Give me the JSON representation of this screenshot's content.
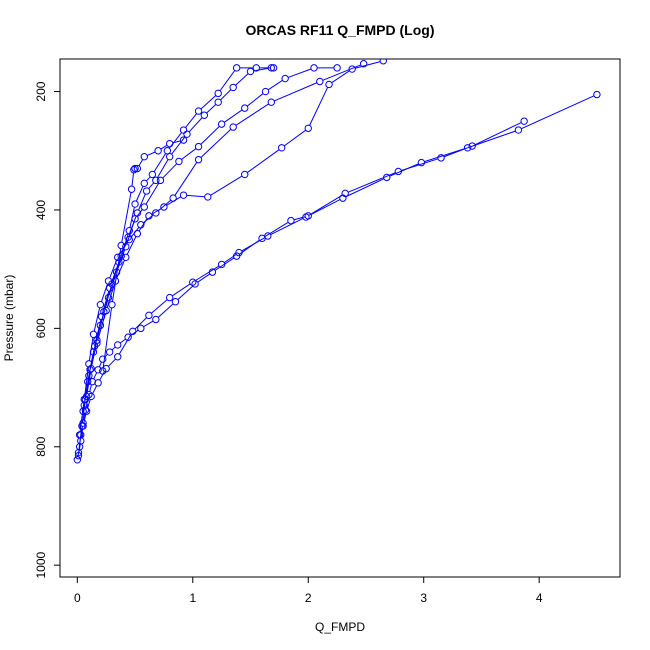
{
  "chart_data": {
    "type": "line",
    "title": "ORCAS RF11 Q_FMPD (Log)",
    "xlabel": "Q_FMPD",
    "ylabel": "Pressure (mbar)",
    "xlim": [
      -0.15,
      4.7
    ],
    "ylim": [
      1020,
      145
    ],
    "y_reversed": true,
    "x_ticks": [
      0,
      1,
      2,
      3,
      4
    ],
    "y_ticks": [
      200,
      400,
      600,
      800,
      1000
    ],
    "grid": false,
    "marker": "open-circle",
    "color": "#0000ff",
    "series": [
      {
        "x": [
          0.0,
          0.02,
          0.03,
          0.05,
          0.07,
          0.1,
          0.13,
          0.18,
          0.22,
          0.28,
          0.35,
          0.44,
          0.55,
          0.68,
          0.85,
          1.02,
          1.17,
          1.38,
          1.6,
          1.85,
          2.0,
          2.3,
          2.68,
          2.98,
          3.38,
          3.82,
          4.5
        ],
        "y": [
          822,
          800,
          780,
          760,
          738,
          712,
          690,
          670,
          652,
          640,
          628,
          615,
          600,
          585,
          555,
          525,
          505,
          478,
          448,
          418,
          410,
          380,
          345,
          320,
          295,
          265,
          205
        ]
      },
      {
        "x": [
          0.01,
          0.03,
          0.05,
          0.08,
          0.12,
          0.18,
          0.25,
          0.35,
          0.48,
          0.62,
          0.8,
          1.0,
          1.25,
          1.4,
          1.65,
          1.98,
          2.32,
          2.78,
          3.15,
          3.42,
          3.87
        ],
        "y": [
          815,
          790,
          765,
          740,
          715,
          692,
          668,
          648,
          605,
          578,
          548,
          522,
          492,
          472,
          444,
          412,
          372,
          335,
          312,
          292,
          250
        ]
      },
      {
        "x": [
          0.01,
          0.04,
          0.07,
          0.11,
          0.17,
          0.25,
          0.33,
          0.42,
          0.52,
          0.62,
          0.75,
          0.92,
          1.13,
          1.45,
          1.77,
          2.0,
          2.18,
          2.38,
          2.65
        ],
        "y": [
          810,
          765,
          720,
          670,
          625,
          570,
          520,
          480,
          440,
          410,
          395,
          375,
          378,
          340,
          295,
          262,
          188,
          162,
          148
        ]
      },
      {
        "x": [
          0.02,
          0.06,
          0.1,
          0.14,
          0.2,
          0.27,
          0.35,
          0.45,
          0.55,
          0.68,
          0.83,
          1.05,
          1.35,
          1.68,
          2.1,
          2.48
        ],
        "y": [
          780,
          720,
          660,
          610,
          560,
          520,
          480,
          450,
          425,
          405,
          380,
          315,
          260,
          218,
          183,
          153
        ]
      },
      {
        "x": [
          0.05,
          0.09,
          0.14,
          0.2,
          0.27,
          0.34,
          0.42,
          0.5,
          0.58,
          0.72,
          0.88,
          1.05,
          1.25,
          1.45,
          1.63,
          1.8,
          2.05,
          2.25
        ],
        "y": [
          740,
          690,
          640,
          595,
          548,
          505,
          462,
          415,
          395,
          350,
          318,
          293,
          255,
          228,
          200,
          178,
          160,
          160
        ]
      },
      {
        "x": [
          0.06,
          0.1,
          0.15,
          0.21,
          0.28,
          0.36,
          0.44,
          0.52,
          0.6,
          0.68,
          0.8,
          0.95,
          1.1,
          1.22,
          1.35,
          1.5,
          1.68
        ],
        "y": [
          730,
          680,
          630,
          580,
          532,
          488,
          446,
          405,
          368,
          350,
          310,
          272,
          240,
          218,
          193,
          166,
          160
        ]
      },
      {
        "x": [
          0.08,
          0.12,
          0.17,
          0.23,
          0.3,
          0.38,
          0.45,
          0.5,
          0.58,
          0.65,
          0.78,
          0.92,
          1.05,
          1.22,
          1.38,
          1.55,
          1.7
        ],
        "y": [
          715,
          668,
          620,
          572,
          525,
          478,
          435,
          390,
          355,
          340,
          300,
          265,
          233,
          203,
          160,
          160,
          160
        ]
      },
      {
        "x": [
          0.22,
          0.3,
          0.38,
          0.47,
          0.49,
          0.5,
          0.52,
          0.58,
          0.7,
          0.8,
          0.92
        ],
        "y": [
          672,
          560,
          460,
          365,
          332,
          330,
          330,
          310,
          300,
          288,
          282
        ]
      }
    ]
  }
}
